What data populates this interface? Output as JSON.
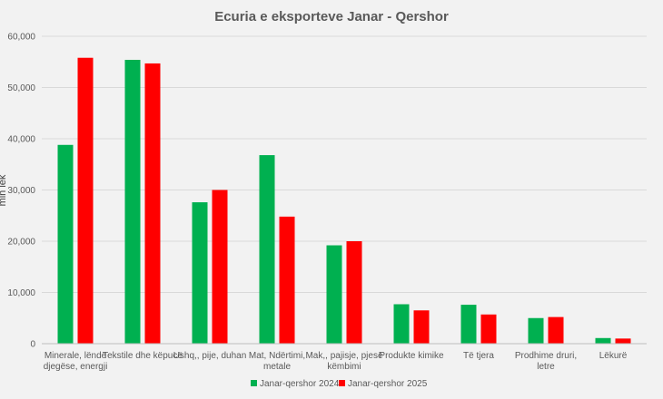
{
  "chart_data": {
    "type": "bar",
    "title": "Ecuria e eksporteve Janar - Qershor",
    "ylabel": "mln lek",
    "xlabel": "",
    "ylim": [
      0,
      60000
    ],
    "yticks": [
      0,
      10000,
      20000,
      30000,
      40000,
      50000,
      60000
    ],
    "ytick_labels": [
      "0",
      "10,000",
      "20,000",
      "30,000",
      "40,000",
      "50,000",
      "60,000"
    ],
    "categories": [
      [
        "Minerale, lëndë",
        "djegëse, energji"
      ],
      [
        "Tekstile dhe këpucë"
      ],
      [
        "Ushq,, pije, duhan"
      ],
      [
        "Mat, Ndërtimi,",
        "metale"
      ],
      [
        "Mak,, pajisje, pjesë",
        "këmbimi"
      ],
      [
        "Produkte kimike"
      ],
      [
        "Të tjera"
      ],
      [
        "Prodhime druri,",
        "letre"
      ],
      [
        "Lëkurë"
      ]
    ],
    "series": [
      {
        "name": "Janar-qershor 2024",
        "color": "#00b050",
        "values": [
          38800,
          55400,
          27600,
          36800,
          19200,
          7700,
          7600,
          5000,
          1100
        ]
      },
      {
        "name": "Janar-qershor 2025",
        "color": "#ff0000",
        "values": [
          55800,
          54700,
          30000,
          24800,
          20000,
          6500,
          5700,
          5200,
          1000
        ]
      }
    ],
    "grid": true,
    "legend": "bottom"
  }
}
